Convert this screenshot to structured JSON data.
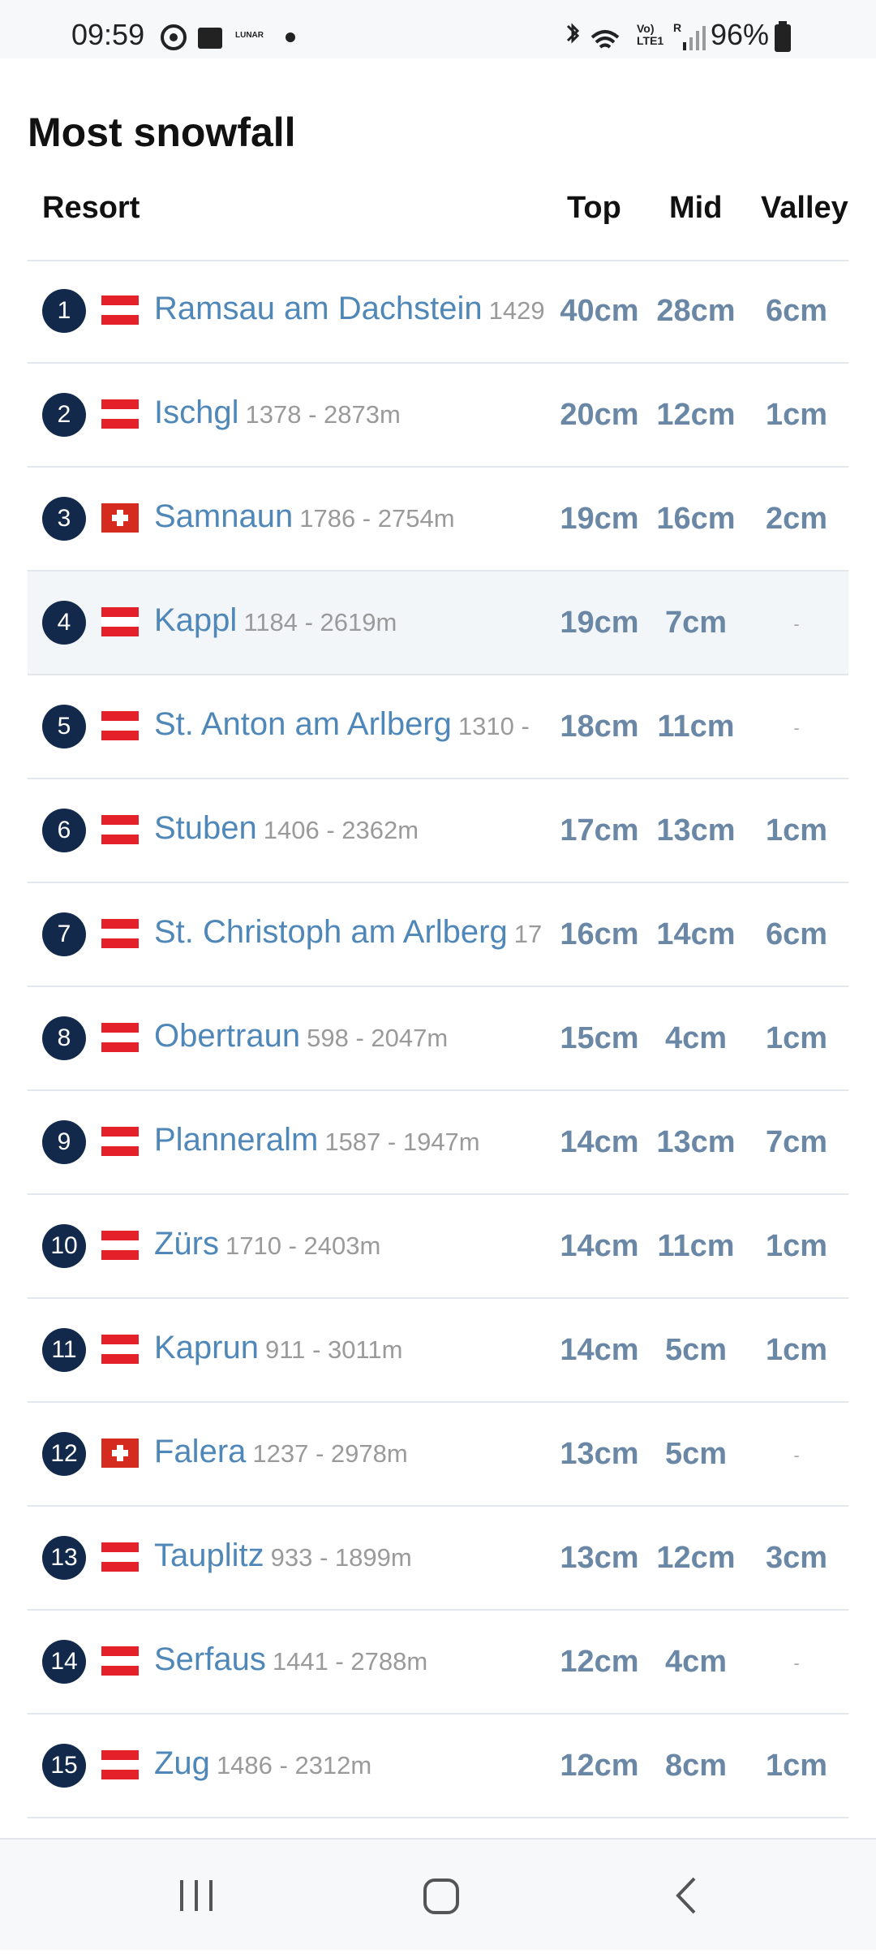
{
  "status_bar": {
    "time": "09:59",
    "carrier_badge": "LUNAR",
    "network": "Vo) LTE1",
    "roaming": "R",
    "battery": "96%"
  },
  "header": {
    "title": "Most snowfall"
  },
  "table": {
    "columns": [
      "Resort",
      "Top",
      "Mid",
      "Valley"
    ],
    "rows": [
      {
        "rank": "1",
        "flag": "at",
        "name": "Ramsau am Dachstein",
        "altitude": "1429",
        "top": "40cm",
        "mid": "28cm",
        "valley": "6cm"
      },
      {
        "rank": "2",
        "flag": "at",
        "name": "Ischgl",
        "altitude": "1378 - 2873m",
        "top": "20cm",
        "mid": "12cm",
        "valley": "1cm"
      },
      {
        "rank": "3",
        "flag": "ch",
        "name": "Samnaun",
        "altitude": "1786 - 2754m",
        "top": "19cm",
        "mid": "16cm",
        "valley": "2cm"
      },
      {
        "rank": "4",
        "flag": "at",
        "name": "Kappl",
        "altitude": "1184 - 2619m",
        "top": "19cm",
        "mid": "7cm",
        "valley": "-"
      },
      {
        "rank": "5",
        "flag": "at",
        "name": "St. Anton am Arlberg",
        "altitude": "1310 -",
        "top": "18cm",
        "mid": "11cm",
        "valley": "-"
      },
      {
        "rank": "6",
        "flag": "at",
        "name": "Stuben",
        "altitude": "1406 - 2362m",
        "top": "17cm",
        "mid": "13cm",
        "valley": "1cm"
      },
      {
        "rank": "7",
        "flag": "at",
        "name": "St. Christoph am Arlberg",
        "altitude": "17",
        "top": "16cm",
        "mid": "14cm",
        "valley": "6cm"
      },
      {
        "rank": "8",
        "flag": "at",
        "name": "Obertraun",
        "altitude": "598 - 2047m",
        "top": "15cm",
        "mid": "4cm",
        "valley": "1cm"
      },
      {
        "rank": "9",
        "flag": "at",
        "name": "Planneralm",
        "altitude": "1587 - 1947m",
        "top": "14cm",
        "mid": "13cm",
        "valley": "7cm"
      },
      {
        "rank": "10",
        "flag": "at",
        "name": "Zürs",
        "altitude": "1710 - 2403m",
        "top": "14cm",
        "mid": "11cm",
        "valley": "1cm"
      },
      {
        "rank": "11",
        "flag": "at",
        "name": "Kaprun",
        "altitude": "911 - 3011m",
        "top": "14cm",
        "mid": "5cm",
        "valley": "1cm"
      },
      {
        "rank": "12",
        "flag": "ch",
        "name": "Falera",
        "altitude": "1237 - 2978m",
        "top": "13cm",
        "mid": "5cm",
        "valley": "-"
      },
      {
        "rank": "13",
        "flag": "at",
        "name": "Tauplitz",
        "altitude": "933 - 1899m",
        "top": "13cm",
        "mid": "12cm",
        "valley": "3cm"
      },
      {
        "rank": "14",
        "flag": "at",
        "name": "Serfaus",
        "altitude": "1441 - 2788m",
        "top": "12cm",
        "mid": "4cm",
        "valley": "-"
      },
      {
        "rank": "15",
        "flag": "at",
        "name": "Zug",
        "altitude": "1486 - 2312m",
        "top": "12cm",
        "mid": "8cm",
        "valley": "1cm"
      }
    ]
  }
}
